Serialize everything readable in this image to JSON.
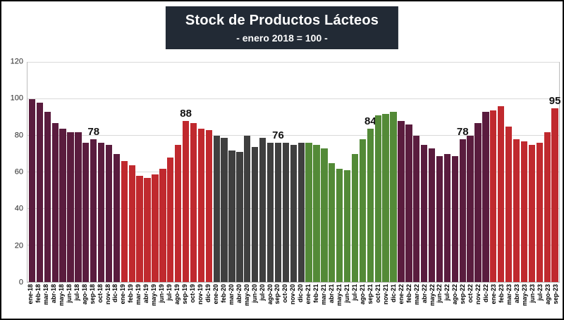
{
  "header": {
    "title": "Stock de Productos Lácteos",
    "subtitle": "- enero 2018 = 100 -"
  },
  "chart_data": {
    "type": "bar",
    "title": "Stock de Productos Lácteos",
    "subtitle": "- enero 2018 = 100 -",
    "ylim": [
      0,
      120
    ],
    "yticks": [
      0,
      20,
      40,
      60,
      80,
      100,
      120
    ],
    "grid": true,
    "legend": "none",
    "categories": [
      "ene-18",
      "feb-18",
      "mar-18",
      "abr-18",
      "may-18",
      "jun-18",
      "jul-18",
      "ago-18",
      "sep-18",
      "oct-18",
      "nov-18",
      "dic-18",
      "ene-19",
      "feb-19",
      "mar-19",
      "abr-19",
      "may-19",
      "jun-19",
      "jul-19",
      "ago-19",
      "sep-19",
      "oct-19",
      "nov-19",
      "dic-19",
      "ene-20",
      "feb-20",
      "mar-20",
      "abr-20",
      "may-20",
      "jun-20",
      "jul-20",
      "ago-20",
      "sep-20",
      "oct-20",
      "nov-20",
      "dic-20",
      "ene-21",
      "feb-21",
      "mar-21",
      "abr-21",
      "may-21",
      "jun-21",
      "jul-21",
      "ago-21",
      "sep-21",
      "oct-21",
      "nov-21",
      "dic-21",
      "ene-22",
      "feb-22",
      "mar-22",
      "abr-22",
      "may-22",
      "jun-22",
      "jul-22",
      "ago-22",
      "sep-22",
      "oct-22",
      "nov-22",
      "dic-22",
      "ene-23",
      "feb-23",
      "mar-23",
      "abr-23",
      "may-23",
      "jun-23",
      "jul-23",
      "ago-23",
      "sep-23"
    ],
    "values": [
      100,
      98,
      93,
      87,
      84,
      82,
      82,
      76,
      78,
      76,
      75,
      70,
      66,
      64,
      58,
      57,
      59,
      62,
      68,
      75,
      88,
      87,
      84,
      83,
      80,
      79,
      72,
      71,
      80,
      74,
      79,
      76,
      76,
      76,
      75,
      76,
      76,
      75,
      73,
      65,
      62,
      61,
      70,
      78,
      84,
      91,
      92,
      93,
      88,
      86,
      80,
      75,
      73,
      69,
      70,
      69,
      78,
      80,
      87,
      93,
      94,
      96,
      85,
      78,
      77,
      75,
      76,
      82,
      95
    ],
    "year_colors": {
      "18": "#5a1c3e",
      "19": "#c0292e",
      "20": "#3f3f3f",
      "21": "#538a37",
      "22": "#5a1c3e",
      "23": "#c0292e"
    },
    "annotations": [
      {
        "index": 8,
        "text": "78"
      },
      {
        "index": 20,
        "text": "88"
      },
      {
        "index": 32,
        "text": "76"
      },
      {
        "index": 44,
        "text": "84"
      },
      {
        "index": 56,
        "text": "78"
      },
      {
        "index": 68,
        "text": "95"
      }
    ],
    "colors_note": {
      "title_box_bg": "#222a35",
      "title_text": "#ffffff",
      "gridline": "#d9d9d9",
      "plot_border": "#bdbdbd",
      "frame_border": "#000000"
    }
  }
}
